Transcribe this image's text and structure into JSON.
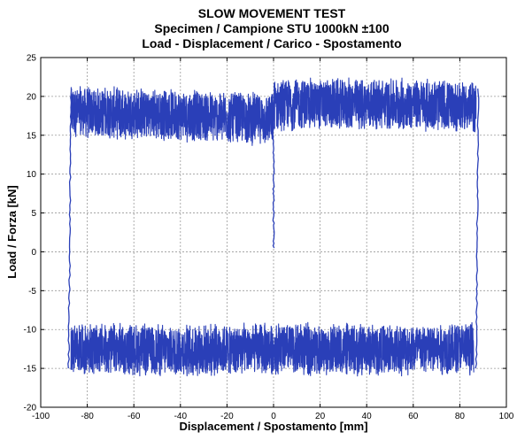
{
  "chart_data": {
    "type": "line",
    "title": [
      "SLOW MOVEMENT TEST",
      "Specimen / Campione STU 1000kN ±100",
      "Load - Displacement / Carico - Spostamento"
    ],
    "xlabel": "Displacement / Spostamento [mm]",
    "ylabel": "Load / Forza [kN]",
    "xlim": [
      -100,
      100
    ],
    "ylim": [
      -20,
      25
    ],
    "xticks": [
      -100,
      -80,
      -60,
      -40,
      -20,
      0,
      20,
      40,
      60,
      80,
      100
    ],
    "yticks": [
      -20,
      -15,
      -10,
      -5,
      0,
      5,
      10,
      15,
      20,
      25
    ],
    "grid": true,
    "series_color": "#2a3fb8",
    "series": [
      {
        "description": "upper band (forward stroke), centre line",
        "x": [
          -87,
          -60,
          -40,
          -20,
          -0.5,
          0.5,
          20,
          40,
          60,
          87
        ],
        "y": [
          18.0,
          17.8,
          17.6,
          17.3,
          17.0,
          19.0,
          19.0,
          19.0,
          19.0,
          18.6
        ]
      },
      {
        "description": "lower band (return stroke), centre line",
        "x": [
          -87,
          -60,
          -40,
          -20,
          0,
          20,
          40,
          60,
          86
        ],
        "y": [
          -12.5,
          -12.6,
          -12.7,
          -12.6,
          -12.5,
          -12.6,
          -12.6,
          -12.5,
          -12.4
        ]
      }
    ],
    "upper_band_range": {
      "min": 14.5,
      "max": 22.0
    },
    "lower_band_range": {
      "min": -16.0,
      "max": -9.0
    },
    "reversals": [
      {
        "x": [
          -88,
          -87
        ],
        "y": [
          -15,
          21
        ]
      },
      {
        "x": [
          87,
          88
        ],
        "y": [
          -15,
          21
        ]
      },
      {
        "x": [
          0,
          0
        ],
        "y": [
          0.5,
          18
        ]
      }
    ]
  }
}
